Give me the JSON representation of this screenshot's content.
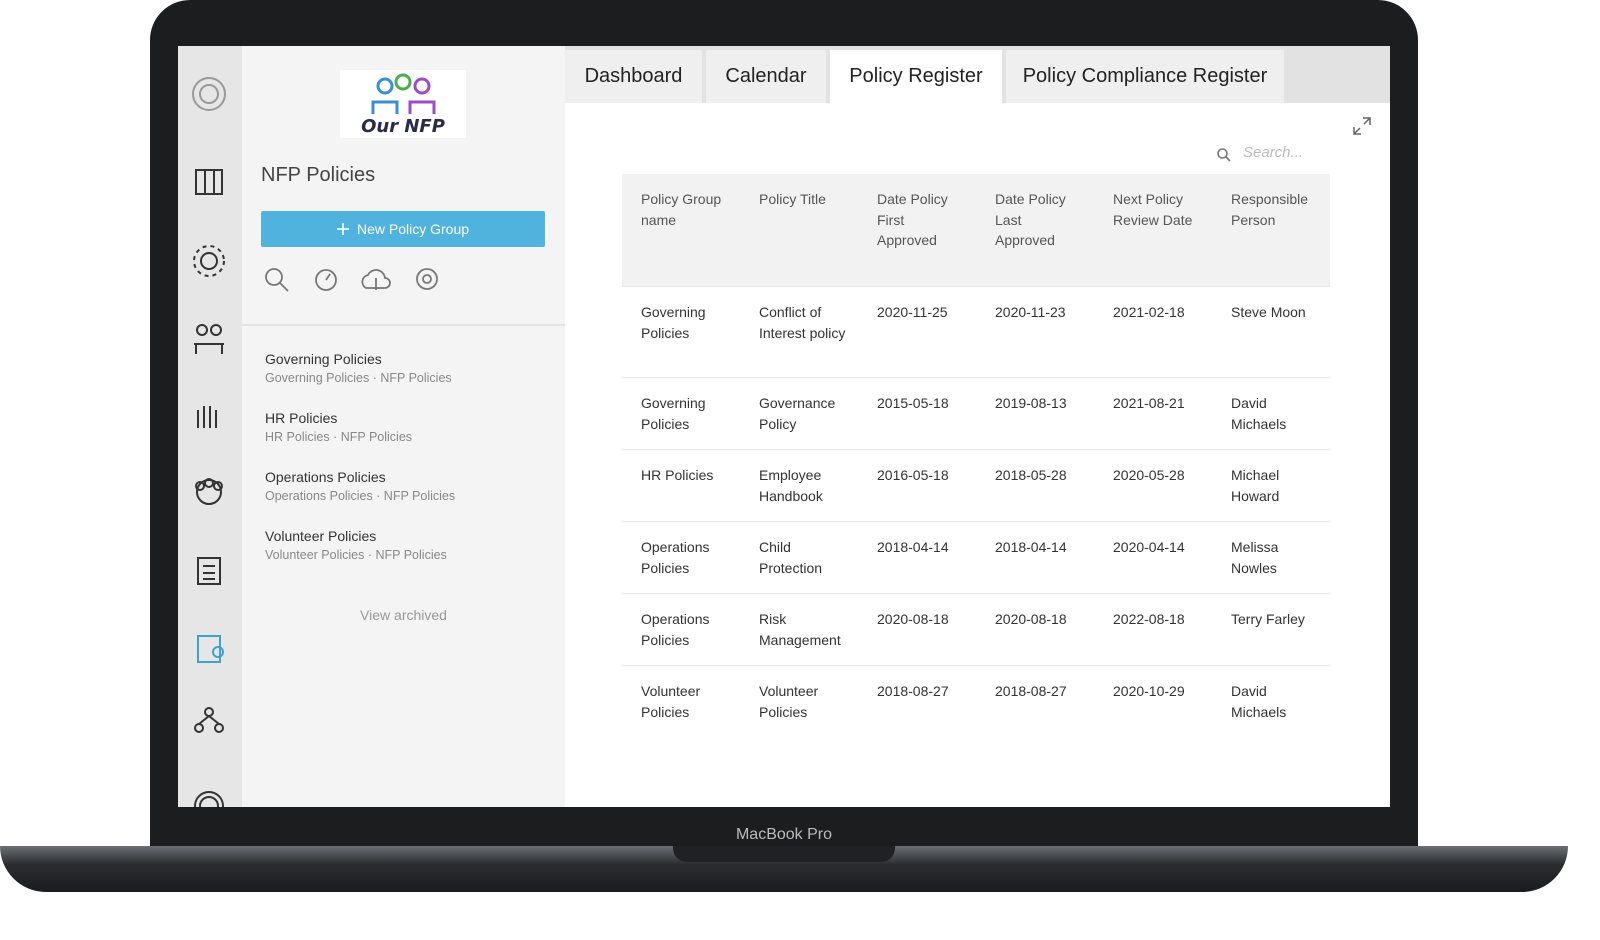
{
  "logo": {
    "text": "Our NFP"
  },
  "sidebar": {
    "title": "NFP Policies",
    "new_button": "New Policy Group",
    "groups": [
      {
        "title": "Governing Policies",
        "path": "Governing Policies · NFP Policies"
      },
      {
        "title": "HR Policies",
        "path": "HR Policies · NFP Policies"
      },
      {
        "title": "Operations Policies",
        "path": "Operations Policies · NFP Policies"
      },
      {
        "title": "Volunteer Policies",
        "path": "Volunteer Policies · NFP Policies"
      }
    ],
    "view_archived": "View archived"
  },
  "tabs": [
    "Dashboard",
    "Calendar",
    "Policy Register",
    "Policy Compliance Register"
  ],
  "search": {
    "placeholder": "Search..."
  },
  "table": {
    "columns": [
      "Policy Group name",
      "Policy Title",
      "Date Policy First Approved",
      "Date Policy Last Approved",
      "Next Policy Review Date",
      "Responsible Person"
    ],
    "rows": [
      [
        "Governing Policies",
        "Conflict of Interest policy",
        "2020-11-25",
        "2020-11-23",
        "2021-02-18",
        "Steve Moon"
      ],
      [
        "Governing Policies",
        "Governance Policy",
        "2015-05-18",
        "2019-08-13",
        "2021-08-21",
        "David Michaels"
      ],
      [
        "HR Policies",
        "Employee Handbook",
        "2016-05-18",
        "2018-05-28",
        "2020-05-28",
        "Michael Howard"
      ],
      [
        "Operations Policies",
        "Child Protection",
        "2018-04-14",
        "2018-04-14",
        "2020-04-14",
        "Melissa Nowles"
      ],
      [
        "Operations Policies",
        "Risk Management",
        "2020-08-18",
        "2020-08-18",
        "2022-08-18",
        "Terry Farley"
      ],
      [
        "Volunteer Policies",
        "Volunteer Policies",
        "2018-08-27",
        "2018-08-27",
        "2020-10-29",
        "David Michaels"
      ]
    ]
  },
  "device": {
    "label": "MacBook Pro"
  }
}
